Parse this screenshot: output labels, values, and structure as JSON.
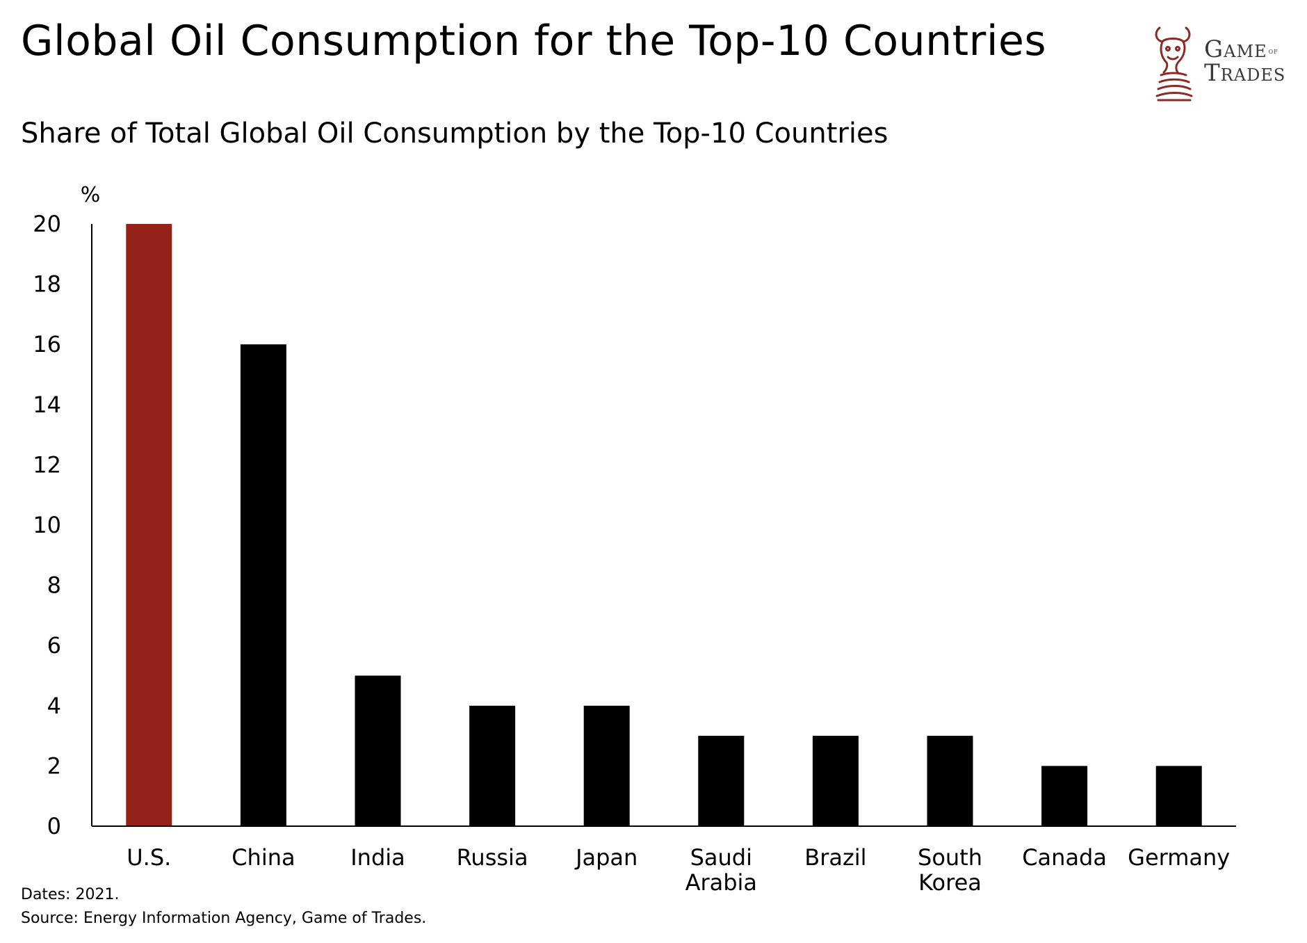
{
  "header": {
    "title": "Global Oil Consumption for the Top-10 Countries",
    "subtitle": "Share of Total Global Oil Consumption by the Top-10 Countries"
  },
  "logo": {
    "line1_main": "Game",
    "line1_small": "of",
    "line2": "Trades",
    "color": "#8b2a24"
  },
  "chart_data": {
    "type": "bar",
    "title": "Share of Total Global Oil Consumption by the Top-10 Countries",
    "xlabel": "",
    "ylabel": "%",
    "ylim": [
      0,
      20
    ],
    "yticks": [
      0,
      2,
      4,
      6,
      8,
      10,
      12,
      14,
      16,
      18,
      20
    ],
    "grid": false,
    "categories": [
      [
        "U.S."
      ],
      [
        "China"
      ],
      [
        "India"
      ],
      [
        "Russia"
      ],
      [
        "Japan"
      ],
      [
        "Saudi",
        "Arabia"
      ],
      [
        "Brazil"
      ],
      [
        "South",
        "Korea"
      ],
      [
        "Canada"
      ],
      [
        "Germany"
      ]
    ],
    "values": [
      20,
      16,
      5,
      4,
      4,
      3,
      3,
      3,
      2,
      2
    ],
    "colors": [
      "#952218",
      "#000000",
      "#000000",
      "#000000",
      "#000000",
      "#000000",
      "#000000",
      "#000000",
      "#000000",
      "#000000"
    ]
  },
  "footer": {
    "dates": "Dates: 2021.",
    "source": "Source: Energy Information Agency, Game of Trades."
  }
}
